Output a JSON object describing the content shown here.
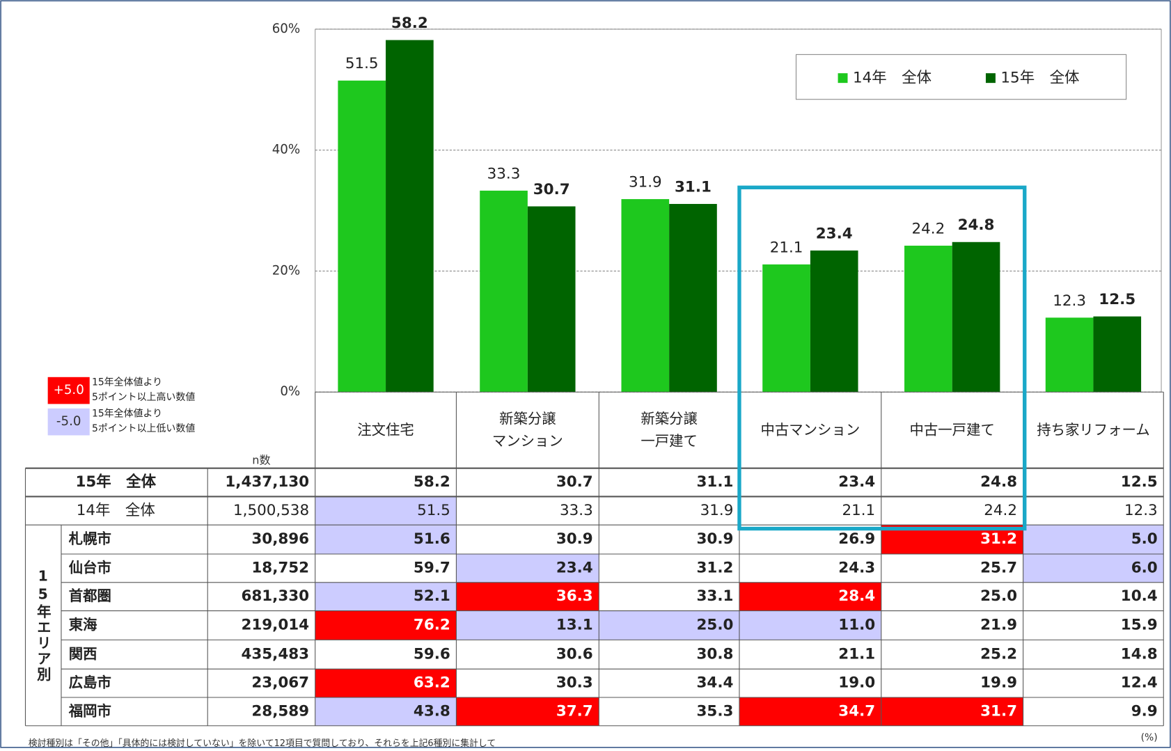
{
  "chart_data": {
    "type": "bar",
    "categories": [
      "注文住宅",
      "新築分譲\nマンション",
      "新築分譲\n一戸建て",
      "中古マンション",
      "中古一戸建て",
      "持ち家リフォーム"
    ],
    "series": [
      {
        "name": "14年　全体",
        "color": "#1ec81e",
        "values": [
          51.5,
          33.3,
          31.9,
          21.1,
          24.2,
          12.3
        ]
      },
      {
        "name": "15年　全体",
        "color": "#006400",
        "values": [
          58.2,
          30.7,
          31.1,
          23.4,
          24.8,
          12.5
        ]
      }
    ],
    "ylim": [
      0,
      60
    ],
    "yticks": [
      {
        "value": 0,
        "label": "0%"
      },
      {
        "value": 20,
        "label": "20%"
      },
      {
        "value": 40,
        "label": "40%"
      },
      {
        "value": 60,
        "label": "60%"
      }
    ],
    "grid": true,
    "legend": "top-right"
  },
  "highlight_legend": [
    {
      "sample": "+5.0",
      "color": "#ff0000",
      "text": "15年全体値より\n5ポイント以上高い数値"
    },
    {
      "sample": "-5.0",
      "color": "#ccccff",
      "text": "15年全体値より\n5ポイント以上低い数値"
    }
  ],
  "table": {
    "n_header": "n数",
    "group_label": "15年エリア別",
    "highlight_colors": {
      "high": "#ff0000",
      "low": "#ccccff"
    },
    "rows": [
      {
        "label": "15年　全体",
        "n": "1,437,130",
        "values": [
          "58.2",
          "30.7",
          "31.1",
          "23.4",
          "24.8",
          "12.5"
        ],
        "highlight": [
          null,
          null,
          null,
          null,
          null,
          null
        ]
      },
      {
        "label": "14年　全体",
        "n": "1,500,538",
        "values": [
          "51.5",
          "33.3",
          "31.9",
          "21.1",
          "24.2",
          "12.3"
        ],
        "highlight": [
          "low",
          null,
          null,
          null,
          null,
          null
        ]
      },
      {
        "label": "札幌市",
        "n": "30,896",
        "values": [
          "51.6",
          "30.9",
          "30.9",
          "26.9",
          "31.2",
          "5.0"
        ],
        "highlight": [
          "low",
          null,
          null,
          null,
          "high",
          "low"
        ]
      },
      {
        "label": "仙台市",
        "n": "18,752",
        "values": [
          "59.7",
          "23.4",
          "31.2",
          "24.3",
          "25.7",
          "6.0"
        ],
        "highlight": [
          null,
          "low",
          null,
          null,
          null,
          "low"
        ]
      },
      {
        "label": "首都圏",
        "n": "681,330",
        "values": [
          "52.1",
          "36.3",
          "33.1",
          "28.4",
          "25.0",
          "10.4"
        ],
        "highlight": [
          "low",
          "high",
          null,
          "high",
          null,
          null
        ]
      },
      {
        "label": "東海",
        "n": "219,014",
        "values": [
          "76.2",
          "13.1",
          "25.0",
          "11.0",
          "21.9",
          "15.9"
        ],
        "highlight": [
          "high",
          "low",
          "low",
          "low",
          null,
          null
        ]
      },
      {
        "label": "関西",
        "n": "435,483",
        "values": [
          "59.6",
          "30.6",
          "30.8",
          "21.1",
          "25.2",
          "14.8"
        ],
        "highlight": [
          null,
          null,
          null,
          null,
          null,
          null
        ]
      },
      {
        "label": "広島市",
        "n": "23,067",
        "values": [
          "63.2",
          "30.3",
          "34.4",
          "19.0",
          "19.9",
          "12.4"
        ],
        "highlight": [
          "high",
          null,
          null,
          null,
          null,
          null
        ]
      },
      {
        "label": "福岡市",
        "n": "28,589",
        "values": [
          "43.8",
          "37.7",
          "35.3",
          "34.7",
          "31.7",
          "9.9"
        ],
        "highlight": [
          "low",
          "high",
          null,
          "high",
          "high",
          null
        ]
      }
    ]
  },
  "notes": {
    "footnote": "検討種別は「その他」「具体的には検討していない」を除いて12項目で質問しており、それらを上記6種別に集計して",
    "unit": "(%)"
  }
}
